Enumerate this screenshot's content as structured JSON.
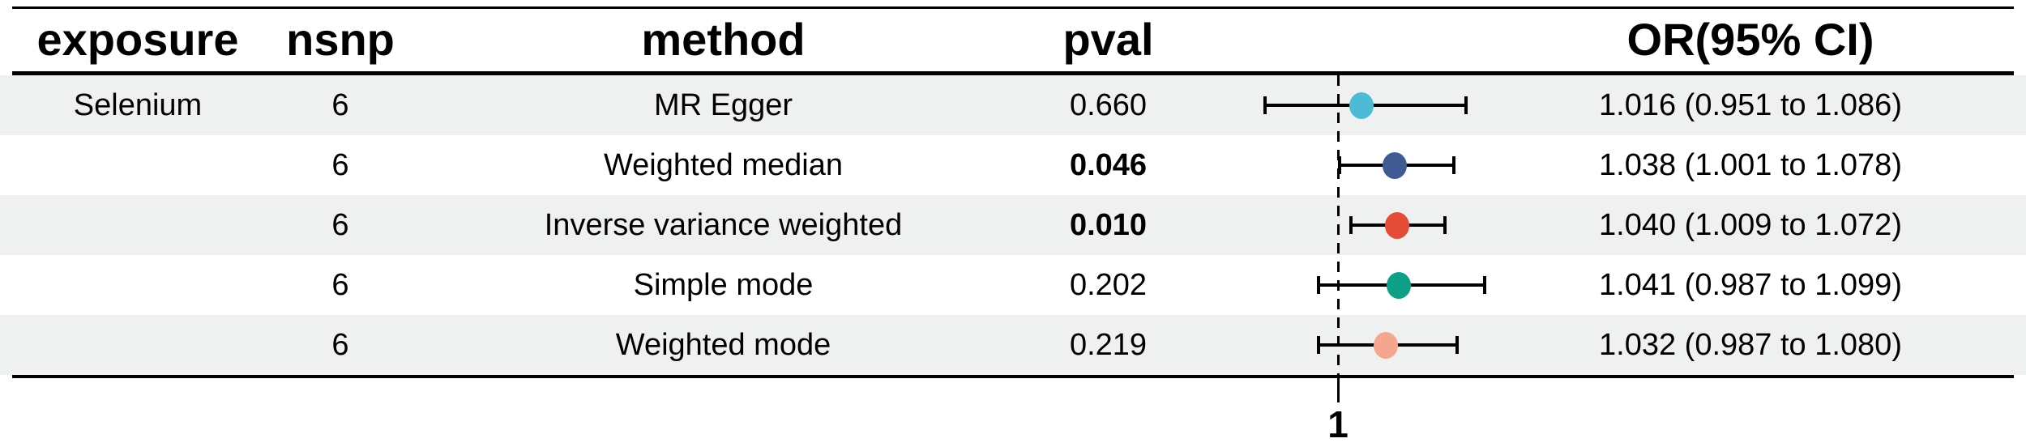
{
  "table": {
    "headers": {
      "exposure": "exposure",
      "nsnp": "nsnp",
      "method": "method",
      "pval": "pval",
      "or_ci": "OR(95% CI)"
    },
    "rows": [
      {
        "exposure": "Selenium",
        "nsnp": "6",
        "method": "MR Egger",
        "pval": "0.660",
        "pval_bold": false,
        "or": 1.016,
        "ci_low": 0.951,
        "ci_high": 1.086,
        "or_ci_text": "1.016 (0.951 to 1.086)",
        "marker_color": "#4cbcd6"
      },
      {
        "exposure": "",
        "nsnp": "6",
        "method": "Weighted median",
        "pval": "0.046",
        "pval_bold": true,
        "or": 1.038,
        "ci_low": 1.001,
        "ci_high": 1.078,
        "or_ci_text": "1.038 (1.001 to 1.078)",
        "marker_color": "#3e5b94"
      },
      {
        "exposure": "",
        "nsnp": "6",
        "method": "Inverse variance weighted",
        "pval": "0.010",
        "pval_bold": true,
        "or": 1.04,
        "ci_low": 1.009,
        "ci_high": 1.072,
        "or_ci_text": "1.040 (1.009 to 1.072)",
        "marker_color": "#e64b35"
      },
      {
        "exposure": "",
        "nsnp": "6",
        "method": "Simple mode",
        "pval": "0.202",
        "pval_bold": false,
        "or": 1.041,
        "ci_low": 0.987,
        "ci_high": 1.099,
        "or_ci_text": "1.041 (0.987 to 1.099)",
        "marker_color": "#0ca186"
      },
      {
        "exposure": "",
        "nsnp": "6",
        "method": "Weighted mode",
        "pval": "0.219",
        "pval_bold": false,
        "or": 1.032,
        "ci_low": 0.987,
        "ci_high": 1.08,
        "or_ci_text": "1.032 (0.987 to 1.080)",
        "marker_color": "#f4a68f"
      }
    ]
  },
  "axis": {
    "tick_label": "1",
    "tick_value": 1,
    "ref_line": 1
  },
  "colors": {
    "stripe": "#eef1f0",
    "text": "#000000",
    "rule": "#000000"
  },
  "chart_data": {
    "type": "scatter",
    "subtype": "forest-plot",
    "title": "",
    "exposure": "Selenium",
    "categories": [
      "MR Egger",
      "Weighted median",
      "Inverse variance weighted",
      "Simple mode",
      "Weighted mode"
    ],
    "series": [
      {
        "name": "OR",
        "values": [
          1.016,
          1.038,
          1.04,
          1.041,
          1.032
        ]
      },
      {
        "name": "CI_low",
        "values": [
          0.951,
          1.001,
          1.009,
          0.987,
          0.987
        ]
      },
      {
        "name": "CI_high",
        "values": [
          1.086,
          1.078,
          1.072,
          1.099,
          1.08
        ]
      },
      {
        "name": "pval",
        "values": [
          0.66,
          0.046,
          0.01,
          0.202,
          0.219
        ]
      },
      {
        "name": "nsnp",
        "values": [
          6,
          6,
          6,
          6,
          6
        ]
      }
    ],
    "x_ticks": [
      1
    ],
    "ref_line": 1,
    "xlabel": "",
    "ylabel": "",
    "legend": "none",
    "grid": false,
    "xlim_approx": [
      0.93,
      1.12
    ],
    "marker_colors": [
      "#4cbcd6",
      "#3e5b94",
      "#e64b35",
      "#0ca186",
      "#f4a68f"
    ]
  }
}
